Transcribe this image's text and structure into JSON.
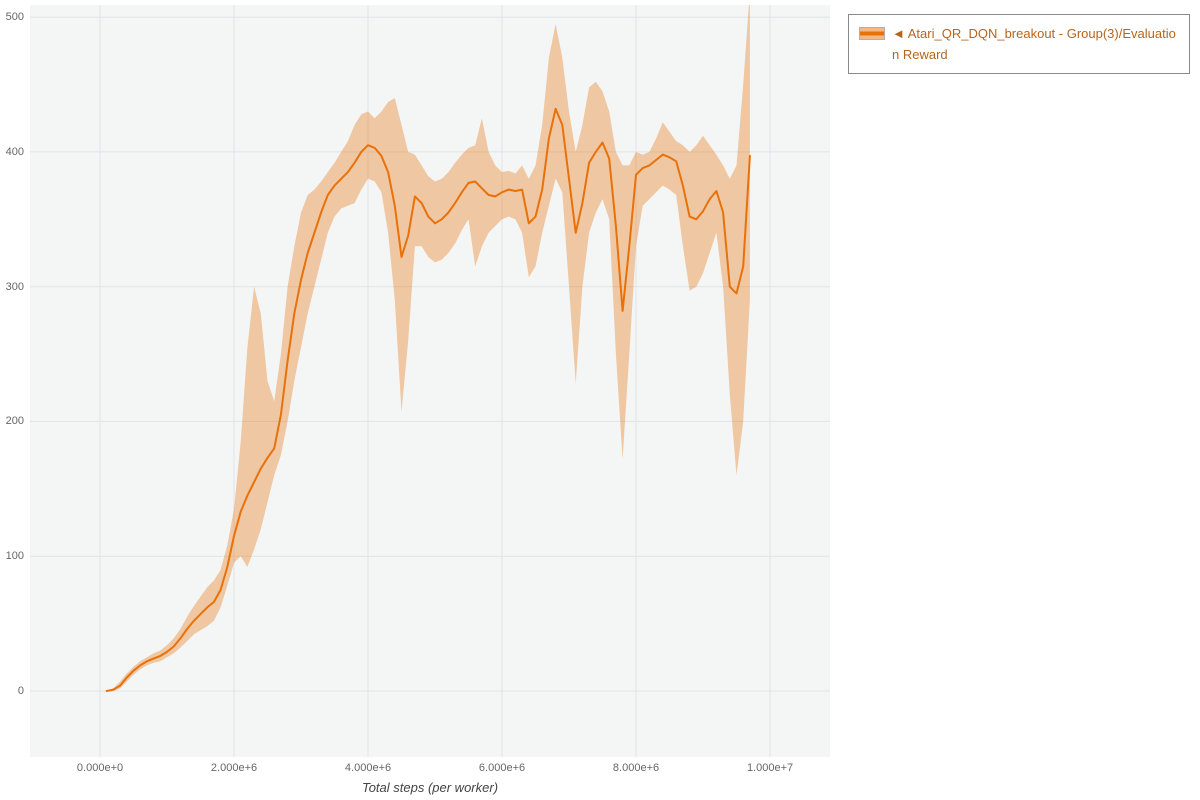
{
  "legend": {
    "label": "◄ Atari_QR_DQN_breakout - Group(3)/Evaluation Reward"
  },
  "colors": {
    "series": "#e8710a",
    "band_opacity": 0.35,
    "plot_bg": "#f4f6f6",
    "grid": "#dfe4e4",
    "legend_text": "#b5651d"
  },
  "chart_data": {
    "type": "line",
    "title": "",
    "xlabel": "Total steps (per worker)",
    "ylabel": "",
    "xlim": [
      -1045000,
      10895000
    ],
    "ylim": [
      -49,
      509
    ],
    "grid": true,
    "legend_position": "top-right",
    "x_scale": 1000000,
    "x_ticks": [
      {
        "value": 0,
        "label": "0.000e+0"
      },
      {
        "value": 2000000,
        "label": "2.000e+6"
      },
      {
        "value": 4000000,
        "label": "4.000e+6"
      },
      {
        "value": 6000000,
        "label": "6.000e+6"
      },
      {
        "value": 8000000,
        "label": "8.000e+6"
      },
      {
        "value": 10000000,
        "label": "1.000e+7"
      }
    ],
    "y_ticks": [
      {
        "value": 0,
        "label": "0"
      },
      {
        "value": 100,
        "label": "100"
      },
      {
        "value": 200,
        "label": "200"
      },
      {
        "value": 300,
        "label": "300"
      },
      {
        "value": 400,
        "label": "400"
      },
      {
        "value": 500,
        "label": "500"
      }
    ],
    "series": [
      {
        "name": "Atari_QR_DQN_breakout - Group(3)/Evaluation Reward",
        "color": "#e8710a",
        "x": [
          0.1,
          0.2,
          0.3,
          0.4,
          0.5,
          0.6,
          0.7,
          0.8,
          0.9,
          1.0,
          1.1,
          1.2,
          1.3,
          1.4,
          1.5,
          1.6,
          1.7,
          1.8,
          1.9,
          2.0,
          2.1,
          2.2,
          2.3,
          2.4,
          2.5,
          2.6,
          2.7,
          2.8,
          2.9,
          3.0,
          3.1,
          3.2,
          3.3,
          3.4,
          3.5,
          3.6,
          3.7,
          3.8,
          3.9,
          4.0,
          4.1,
          4.2,
          4.3,
          4.4,
          4.5,
          4.6,
          4.7,
          4.8,
          4.9,
          5.0,
          5.1,
          5.2,
          5.3,
          5.4,
          5.5,
          5.6,
          5.7,
          5.8,
          5.9,
          6.0,
          6.1,
          6.2,
          6.3,
          6.4,
          6.5,
          6.6,
          6.7,
          6.8,
          6.9,
          7.0,
          7.1,
          7.2,
          7.3,
          7.4,
          7.5,
          7.6,
          7.7,
          7.8,
          7.9,
          8.0,
          8.1,
          8.2,
          8.3,
          8.4,
          8.5,
          8.6,
          8.7,
          8.8,
          8.9,
          9.0,
          9.1,
          9.2,
          9.3,
          9.4,
          9.5,
          9.6,
          9.7
        ],
        "mean": [
          0,
          1,
          4,
          10,
          15,
          19,
          22,
          24,
          26,
          29,
          33,
          39,
          46,
          52,
          57,
          62,
          66,
          75,
          92,
          115,
          133,
          145,
          155,
          165,
          173,
          180,
          205,
          245,
          280,
          305,
          325,
          340,
          355,
          368,
          375,
          380,
          385,
          392,
          400,
          405,
          403,
          397,
          385,
          360,
          322,
          338,
          367,
          362,
          352,
          347,
          350,
          355,
          362,
          370,
          377,
          378,
          373,
          368,
          367,
          370,
          372,
          371,
          372,
          347,
          352,
          372,
          410,
          432,
          420,
          380,
          340,
          362,
          392,
          400,
          407,
          395,
          345,
          282,
          330,
          383,
          388,
          390,
          394,
          398,
          396,
          393,
          375,
          352,
          350,
          356,
          365,
          371,
          355,
          300,
          295,
          315,
          397
        ],
        "lower": [
          0,
          0,
          2,
          7,
          12,
          16,
          19,
          21,
          22,
          25,
          28,
          32,
          37,
          42,
          45,
          48,
          52,
          62,
          78,
          95,
          100,
          92,
          105,
          120,
          140,
          160,
          175,
          200,
          230,
          255,
          280,
          300,
          320,
          340,
          352,
          358,
          360,
          362,
          372,
          380,
          378,
          370,
          340,
          290,
          207,
          260,
          330,
          330,
          322,
          318,
          320,
          325,
          332,
          342,
          350,
          315,
          330,
          340,
          345,
          350,
          352,
          350,
          340,
          307,
          315,
          340,
          360,
          380,
          370,
          300,
          228,
          300,
          340,
          355,
          365,
          350,
          250,
          172,
          250,
          330,
          360,
          365,
          370,
          375,
          372,
          368,
          330,
          297,
          300,
          310,
          325,
          340,
          300,
          220,
          160,
          200,
          290
        ],
        "upper": [
          0,
          2,
          7,
          13,
          18,
          22,
          25,
          28,
          30,
          34,
          39,
          46,
          55,
          63,
          70,
          77,
          82,
          90,
          108,
          135,
          185,
          255,
          300,
          280,
          230,
          215,
          250,
          300,
          330,
          355,
          368,
          372,
          378,
          385,
          392,
          400,
          408,
          420,
          428,
          430,
          425,
          430,
          437,
          440,
          420,
          400,
          398,
          390,
          382,
          378,
          380,
          385,
          392,
          398,
          403,
          405,
          425,
          400,
          390,
          385,
          386,
          384,
          390,
          380,
          390,
          420,
          470,
          495,
          470,
          430,
          400,
          420,
          448,
          452,
          445,
          430,
          400,
          390,
          390,
          400,
          398,
          400,
          410,
          422,
          415,
          408,
          405,
          400,
          405,
          412,
          405,
          398,
          390,
          380,
          390,
          450,
          520
        ]
      }
    ]
  }
}
